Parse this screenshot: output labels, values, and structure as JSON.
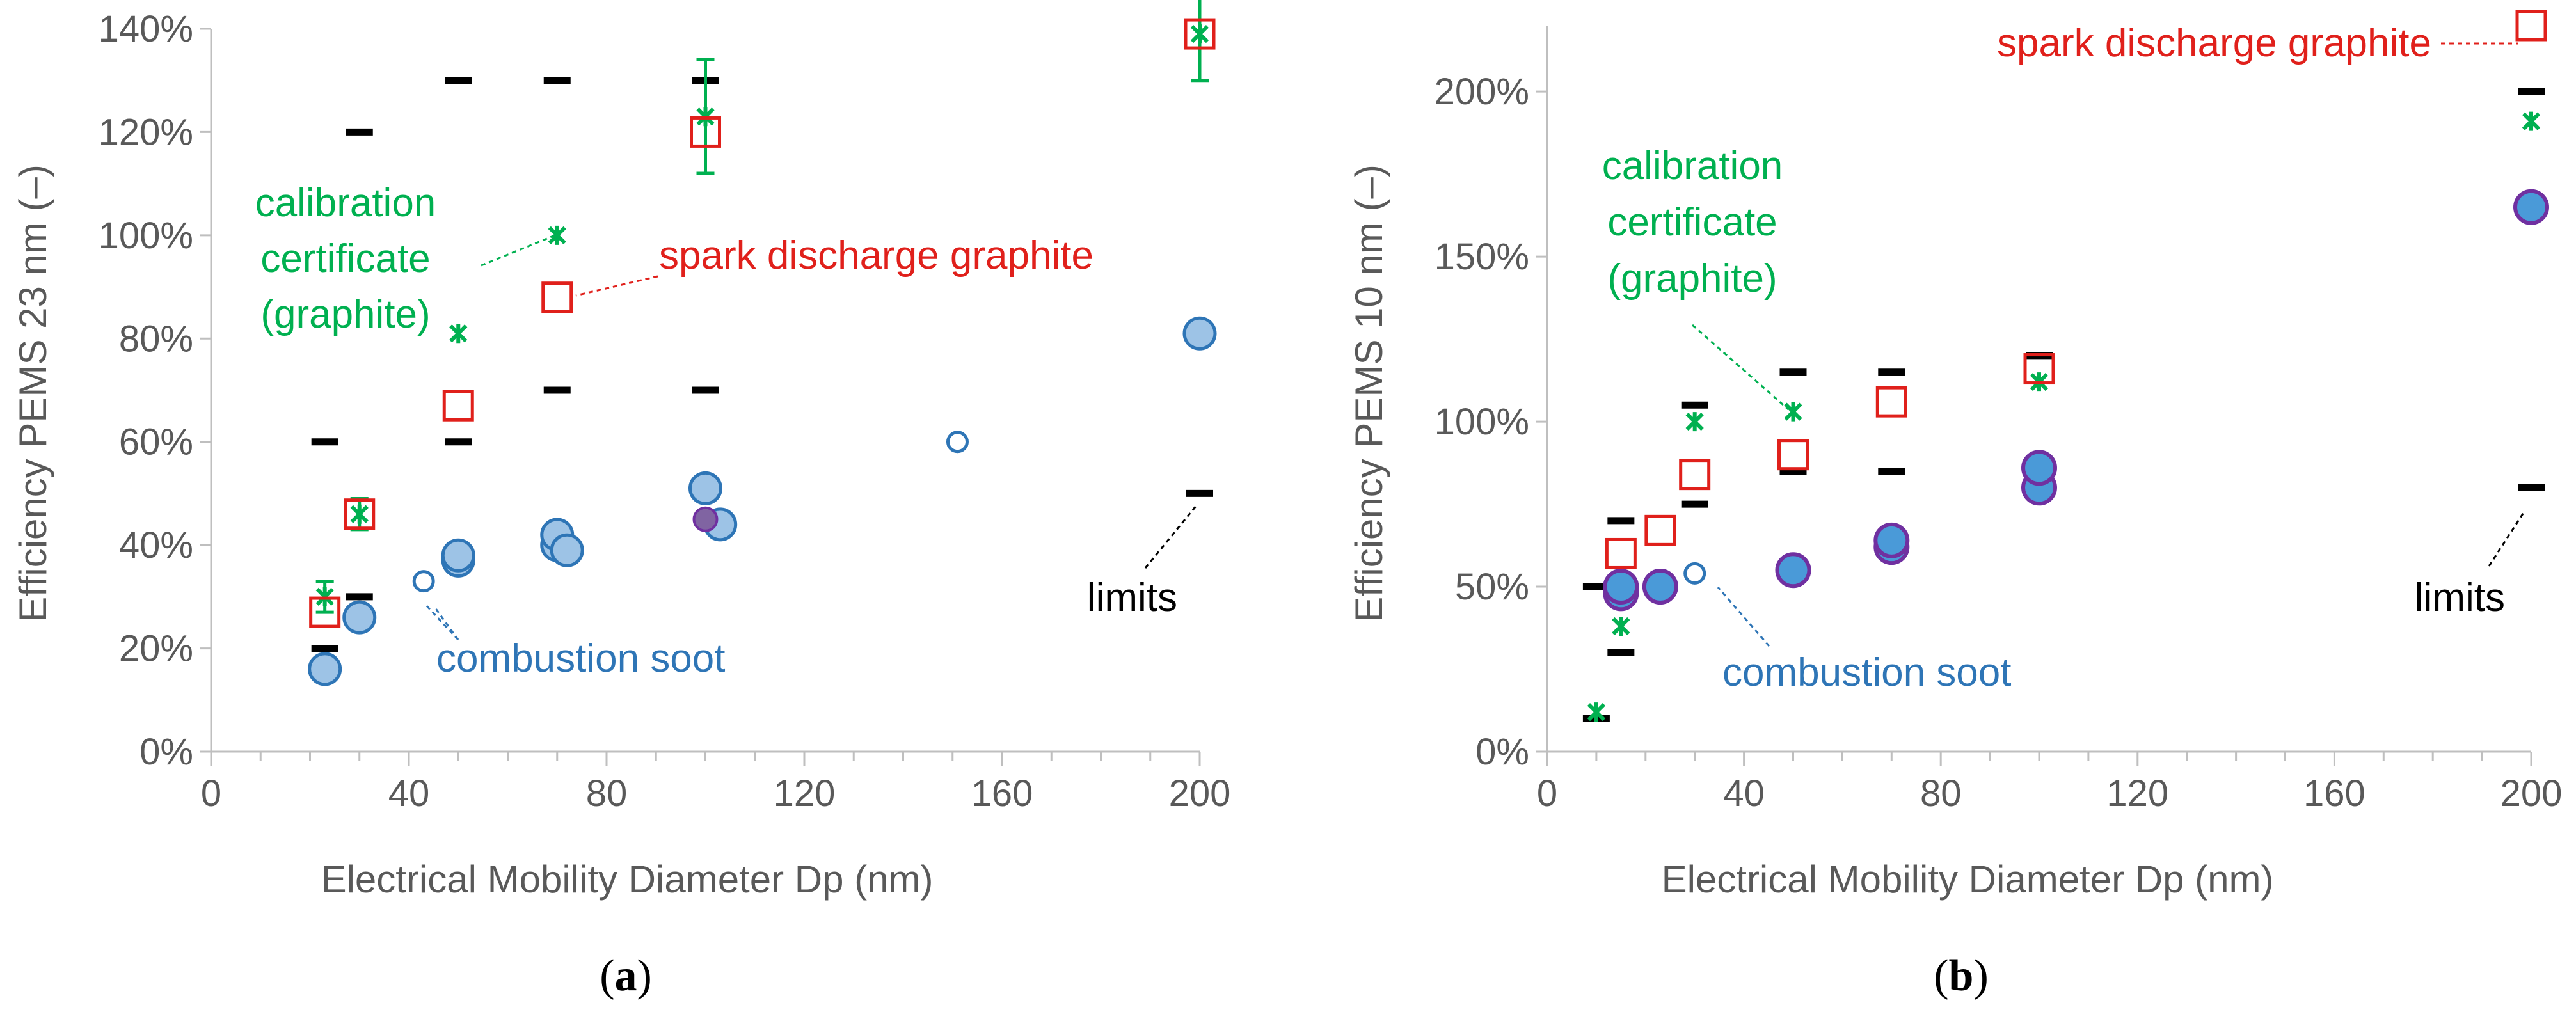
{
  "colors": {
    "limits": "#000000",
    "calibration": "#00b050",
    "spark": "#e0201b",
    "soot_fill": "#9dc3e6",
    "soot_stroke": "#2e75b6",
    "soot_solid": "#4a9ad8",
    "soot_purple": "#7030a0",
    "axis": "#bfbfbf",
    "text": "#595959"
  },
  "chart_data": [
    {
      "type": "scatter",
      "panel_label": "a",
      "xlabel": "Electrical Mobility Diameter Dp (nm)",
      "ylabel": "Efficiency PEMS 23 nm (–)",
      "xlim": [
        0,
        200
      ],
      "ylim": [
        0,
        1.4
      ],
      "xticks": [
        "0",
        "40",
        "80",
        "120",
        "160",
        "200"
      ],
      "yticks": [
        "0%",
        "20%",
        "40%",
        "60%",
        "80%",
        "100%",
        "120%",
        "140%"
      ],
      "annotations": {
        "calibration": [
          "calibration",
          "certificate",
          "(graphite)"
        ],
        "spark": "spark discharge graphite",
        "soot": "combustion soot",
        "limits": "limits"
      },
      "series": [
        {
          "name": "limits",
          "marker": "dash",
          "points": [
            [
              23,
              0.2
            ],
            [
              23,
              0.6
            ],
            [
              30,
              0.3
            ],
            [
              30,
              1.2
            ],
            [
              50,
              0.6
            ],
            [
              50,
              1.3
            ],
            [
              70,
              0.7
            ],
            [
              70,
              1.3
            ],
            [
              100,
              0.7
            ],
            [
              100,
              1.3
            ],
            [
              200,
              0.5
            ]
          ]
        },
        {
          "name": "calibration certificate (graphite)",
          "marker": "x",
          "errorbars": true,
          "points": [
            [
              23,
              0.3,
              0.03
            ],
            [
              30,
              0.46,
              0.03
            ],
            [
              50,
              0.81,
              0.0
            ],
            [
              70,
              1.0,
              0.0
            ],
            [
              100,
              1.23,
              0.11
            ],
            [
              200,
              1.39,
              0.09
            ]
          ]
        },
        {
          "name": "spark discharge graphite",
          "marker": "square",
          "points": [
            [
              23,
              0.27
            ],
            [
              30,
              0.46
            ],
            [
              50,
              0.67
            ],
            [
              70,
              0.88
            ],
            [
              100,
              1.2
            ],
            [
              200,
              1.39
            ]
          ]
        },
        {
          "name": "combustion soot",
          "marker": "circle-light",
          "points": [
            [
              23,
              0.16
            ],
            [
              30,
              0.26
            ],
            [
              50,
              0.37
            ],
            [
              50,
              0.38
            ],
            [
              70,
              0.4
            ],
            [
              70,
              0.42
            ],
            [
              72,
              0.39
            ],
            [
              100,
              0.51
            ],
            [
              103,
              0.44
            ],
            [
              200,
              0.81
            ]
          ]
        },
        {
          "name": "combustion soot (purple)",
          "marker": "circle-purple",
          "points": [
            [
              100,
              0.45
            ]
          ]
        },
        {
          "name": "combustion soot (small open)",
          "marker": "circle-open",
          "points": [
            [
              43,
              0.33
            ],
            [
              151,
              0.6
            ]
          ]
        }
      ]
    },
    {
      "type": "scatter",
      "panel_label": "b",
      "xlabel": "Electrical Mobility Diameter Dp (nm)",
      "ylabel": "Efficiency PEMS 10 nm (–)",
      "xlim": [
        0,
        200
      ],
      "ylim": [
        0,
        2.2
      ],
      "xticks": [
        "0",
        "40",
        "80",
        "120",
        "160",
        "200"
      ],
      "yticks": [
        "0%",
        "50%",
        "100%",
        "150%",
        "200%"
      ],
      "annotations": {
        "calibration": [
          "calibration",
          "certificate",
          "(graphite)"
        ],
        "spark": "spark discharge graphite",
        "soot": "combustion soot",
        "limits": "limits"
      },
      "series": [
        {
          "name": "limits",
          "marker": "dash",
          "points": [
            [
              10,
              0.1
            ],
            [
              10,
              0.5
            ],
            [
              15,
              0.3
            ],
            [
              15,
              0.7
            ],
            [
              30,
              0.75
            ],
            [
              30,
              1.05
            ],
            [
              50,
              0.85
            ],
            [
              50,
              1.15
            ],
            [
              70,
              0.85
            ],
            [
              70,
              1.15
            ],
            [
              100,
              0.8
            ],
            [
              100,
              1.2
            ],
            [
              200,
              0.8
            ],
            [
              200,
              2.0
            ]
          ]
        },
        {
          "name": "calibration certificate (graphite)",
          "marker": "x",
          "errorbars": false,
          "points": [
            [
              10,
              0.12,
              0
            ],
            [
              15,
              0.38,
              0
            ],
            [
              30,
              1.0,
              0
            ],
            [
              50,
              1.03,
              0
            ],
            [
              100,
              1.12,
              0
            ],
            [
              200,
              1.91,
              0
            ]
          ]
        },
        {
          "name": "spark discharge graphite",
          "marker": "square",
          "points": [
            [
              15,
              0.6
            ],
            [
              23,
              0.67
            ],
            [
              30,
              0.84
            ],
            [
              50,
              0.9
            ],
            [
              70,
              1.06
            ],
            [
              100,
              1.16
            ],
            [
              200,
              2.2
            ]
          ]
        },
        {
          "name": "combustion soot",
          "marker": "circle-solid",
          "points": [
            [
              15,
              0.48
            ],
            [
              15,
              0.5
            ],
            [
              23,
              0.5
            ],
            [
              50,
              0.55
            ],
            [
              70,
              0.62
            ],
            [
              70,
              0.64
            ],
            [
              100,
              0.8
            ],
            [
              100,
              0.86
            ],
            [
              200,
              1.65
            ]
          ]
        },
        {
          "name": "combustion soot (small open)",
          "marker": "circle-open",
          "points": [
            [
              30,
              0.54
            ]
          ]
        }
      ]
    }
  ]
}
